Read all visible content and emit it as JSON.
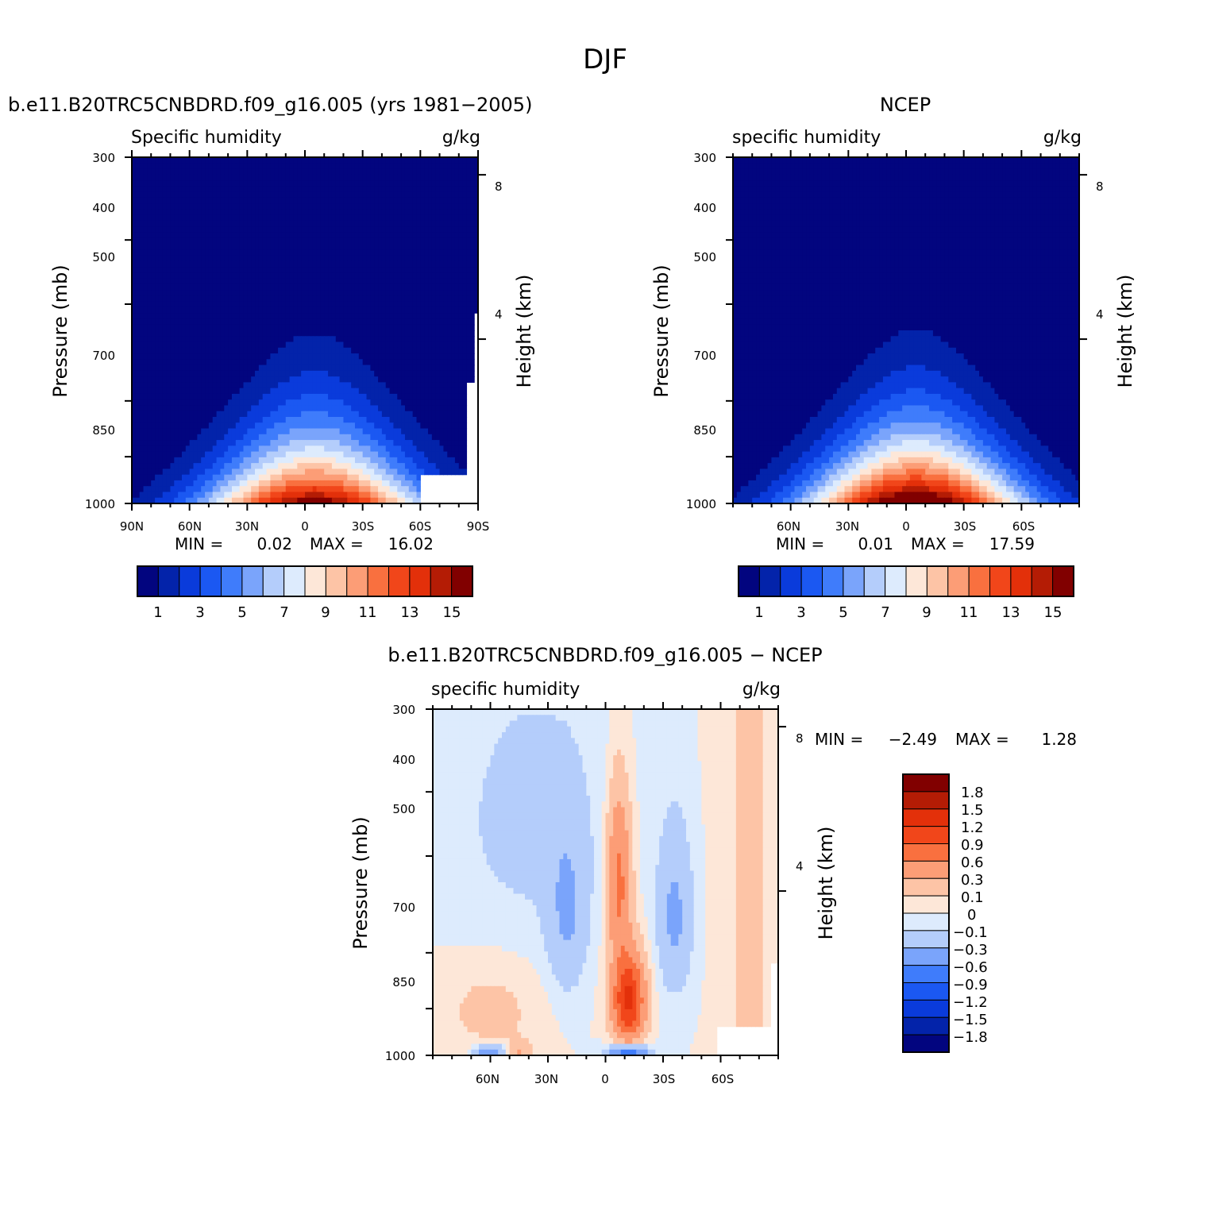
{
  "figure": {
    "title": "DJF"
  },
  "colors": {
    "abs_scale": [
      "#02057f",
      "#0323aa",
      "#0a3bdb",
      "#1b58f2",
      "#3f7cfb",
      "#7aa4fb",
      "#b4cdfb",
      "#ddebfd",
      "#fde7d8",
      "#fdc4a6",
      "#fc9d76",
      "#f9703f",
      "#f1461a",
      "#e3300a",
      "#b41c05",
      "#810000"
    ],
    "diff_scale": [
      "#02057f",
      "#0323aa",
      "#0a3bdb",
      "#1b58f2",
      "#3f7cfb",
      "#7aa4fb",
      "#b4cdfb",
      "#ddebfd",
      "#fde7d8",
      "#fdc4a6",
      "#fc9d76",
      "#f9703f",
      "#f1461a",
      "#e3300a",
      "#b41c05",
      "#810000"
    ]
  },
  "panels": [
    {
      "id": "model",
      "title": "b.e11.B20TRC5CNBDRD.f09_g16.005 (yrs 1981-2005)",
      "left_string": "Specific humidity",
      "right_string": "g/kg",
      "ylabel": "Pressure (mb)",
      "ylabel_right": "Height (km)",
      "y_ticks": [
        "300",
        "400",
        "500",
        "700",
        "850",
        "1000"
      ],
      "x_ticks": [
        "90N",
        "60N",
        "30N",
        "0",
        "30S",
        "60S",
        "90S"
      ],
      "right_ticks": [
        "8",
        "4"
      ],
      "min_label": "MIN =",
      "min_value": "0.02",
      "max_label": "MAX =",
      "max_value": "16.02",
      "colorbar_labels": [
        "1",
        "3",
        "5",
        "7",
        "9",
        "11",
        "13",
        "15"
      ]
    },
    {
      "id": "obs",
      "title": "NCEP",
      "left_string": "specific humidity",
      "right_string": "g/kg",
      "ylabel": "Pressure (mb)",
      "ylabel_right": "Height (km)",
      "y_ticks": [
        "300",
        "400",
        "500",
        "700",
        "850",
        "1000"
      ],
      "x_ticks": [
        "60N",
        "30N",
        "0",
        "30S",
        "60S"
      ],
      "right_ticks": [
        "8",
        "4"
      ],
      "min_label": "MIN =",
      "min_value": "0.01",
      "max_label": "MAX =",
      "max_value": "17.59",
      "colorbar_labels": [
        "1",
        "3",
        "5",
        "7",
        "9",
        "11",
        "13",
        "15"
      ]
    },
    {
      "id": "diff",
      "title": "b.e11.B20TRC5CNBDRD.f09_g16.005 - NCEP",
      "left_string": "specific humidity",
      "right_string": "g/kg",
      "ylabel": "Pressure (mb)",
      "ylabel_right": "Height (km)",
      "y_ticks": [
        "300",
        "400",
        "500",
        "700",
        "850",
        "1000"
      ],
      "x_ticks": [
        "60N",
        "30N",
        "0",
        "30S",
        "60S"
      ],
      "right_ticks": [
        "8",
        "4"
      ],
      "min_label": "MIN =",
      "min_value": "-2.49",
      "max_label": "MAX =",
      "max_value": "1.28",
      "colorbar_labels": [
        "1.8",
        "1.5",
        "1.2",
        "0.9",
        "0.6",
        "0.3",
        "0.1",
        "0",
        "-0.1",
        "-0.3",
        "-0.6",
        "-0.9",
        "-1.2",
        "-1.5",
        "-1.8"
      ]
    }
  ],
  "chart_data": [
    {
      "type": "heatmap",
      "title": "b.e11.B20TRC5CNBDRD.f09_g16.005 (yrs 1981-2005)",
      "xlabel": "",
      "ylabel": "Pressure (mb)",
      "units": "g/kg",
      "xlim": [
        90,
        -90
      ],
      "ylim": [
        1000,
        300
      ],
      "y_scale": "log",
      "levels": [
        1,
        2,
        3,
        4,
        5,
        6,
        7,
        8,
        9,
        10,
        11,
        12,
        13,
        14,
        15
      ],
      "peak_value": 16.02,
      "peak_lat": -5,
      "min": 0.02,
      "max": 16.02
    },
    {
      "type": "heatmap",
      "title": "NCEP",
      "xlabel": "",
      "ylabel": "Pressure (mb)",
      "units": "g/kg",
      "xlim": [
        90,
        -90
      ],
      "ylim": [
        1000,
        300
      ],
      "y_scale": "log",
      "levels": [
        1,
        2,
        3,
        4,
        5,
        6,
        7,
        8,
        9,
        10,
        11,
        12,
        13,
        14,
        15
      ],
      "peak_value": 17.59,
      "peak_lat": -5,
      "min": 0.01,
      "max": 17.59
    },
    {
      "type": "heatmap",
      "title": "b.e11.B20TRC5CNBDRD.f09_g16.005 - NCEP",
      "xlabel": "",
      "ylabel": "Pressure (mb)",
      "units": "g/kg",
      "xlim": [
        90,
        -90
      ],
      "ylim": [
        1000,
        300
      ],
      "y_scale": "log",
      "levels": [
        -1.8,
        -1.5,
        -1.2,
        -0.9,
        -0.6,
        -0.3,
        -0.1,
        0,
        0.1,
        0.3,
        0.6,
        0.9,
        1.2,
        1.5,
        1.8
      ],
      "min": -2.49,
      "max": 1.28
    }
  ]
}
